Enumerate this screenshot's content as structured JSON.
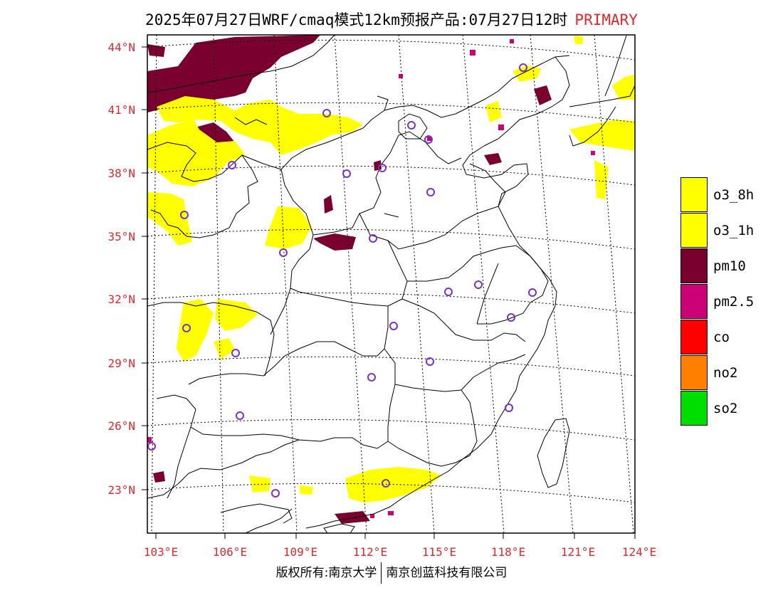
{
  "title": {
    "main": "2025年07月27日WRF/cmaq模式12km预报产品:07月27日12时",
    "tag": "PRIMARY"
  },
  "axes": {
    "lat_labels": [
      "44°N",
      "41°N",
      "38°N",
      "35°N",
      "32°N",
      "29°N",
      "26°N",
      "23°N"
    ],
    "lon_labels": [
      "103°E",
      "106°E",
      "109°E",
      "112°E",
      "115°E",
      "118°E",
      "121°E",
      "124°E"
    ]
  },
  "legend": [
    {
      "label": "o3_8h",
      "color": "#ffff00"
    },
    {
      "label": "o3_1h",
      "color": "#ffff00"
    },
    {
      "label": "pm10",
      "color": "#7a0030"
    },
    {
      "label": "pm2.5",
      "color": "#cc0077"
    },
    {
      "label": "co",
      "color": "#ff0000"
    },
    {
      "label": "no2",
      "color": "#ff7f00"
    },
    {
      "label": "so2",
      "color": "#00dd00"
    }
  ],
  "footer": {
    "left": "版权所有:南京大学",
    "right": "南京创蓝科技有限公司"
  }
}
